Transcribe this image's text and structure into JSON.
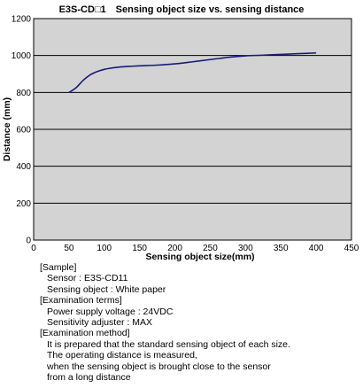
{
  "chart_data": {
    "type": "line",
    "title": "E3S-CD□1　Sensing object size vs. sensing distance",
    "xlabel": "Sensing object size(mm)",
    "ylabel": "Distance (mm)",
    "xlim": [
      0,
      450
    ],
    "ylim": [
      0,
      1200
    ],
    "xticks": [
      "0",
      "50",
      "100",
      "150",
      "200",
      "250",
      "300",
      "350",
      "400",
      "450"
    ],
    "yticks": [
      "0",
      "200",
      "400",
      "600",
      "800",
      "1000",
      "1200"
    ],
    "grid": "horizontal",
    "series": [
      {
        "color": "#1a1a7a",
        "x": [
          50,
          60,
          70,
          80,
          90,
          100,
          110,
          120,
          135,
          150,
          175,
          200,
          225,
          250,
          275,
          300,
          325,
          350,
          375,
          400
        ],
        "y": [
          800,
          825,
          865,
          895,
          913,
          925,
          932,
          937,
          941,
          944,
          948,
          955,
          966,
          978,
          990,
          998,
          1002,
          1006,
          1010,
          1014
        ]
      }
    ]
  },
  "notes": [
    {
      "text": "[Sample]",
      "kind": "h"
    },
    {
      "text": "Sensor : E3S-CD11",
      "kind": "i"
    },
    {
      "text": "Sensing object : White paper",
      "kind": "i"
    },
    {
      "text": "[Examination terms]",
      "kind": "h"
    },
    {
      "text": "Power supply voltage : 24VDC",
      "kind": "i"
    },
    {
      "text": "Sensitivity adjuster : MAX",
      "kind": "i"
    },
    {
      "text": "[Examination method]",
      "kind": "h"
    },
    {
      "text": "It is prepared that the standard sensing object of each size.",
      "kind": "i"
    },
    {
      "text": "The operating distance is measured,",
      "kind": "i"
    },
    {
      "text": "when the sensing object is brought close to the sensor",
      "kind": "i"
    },
    {
      "text": "from a long distance",
      "kind": "i"
    }
  ]
}
